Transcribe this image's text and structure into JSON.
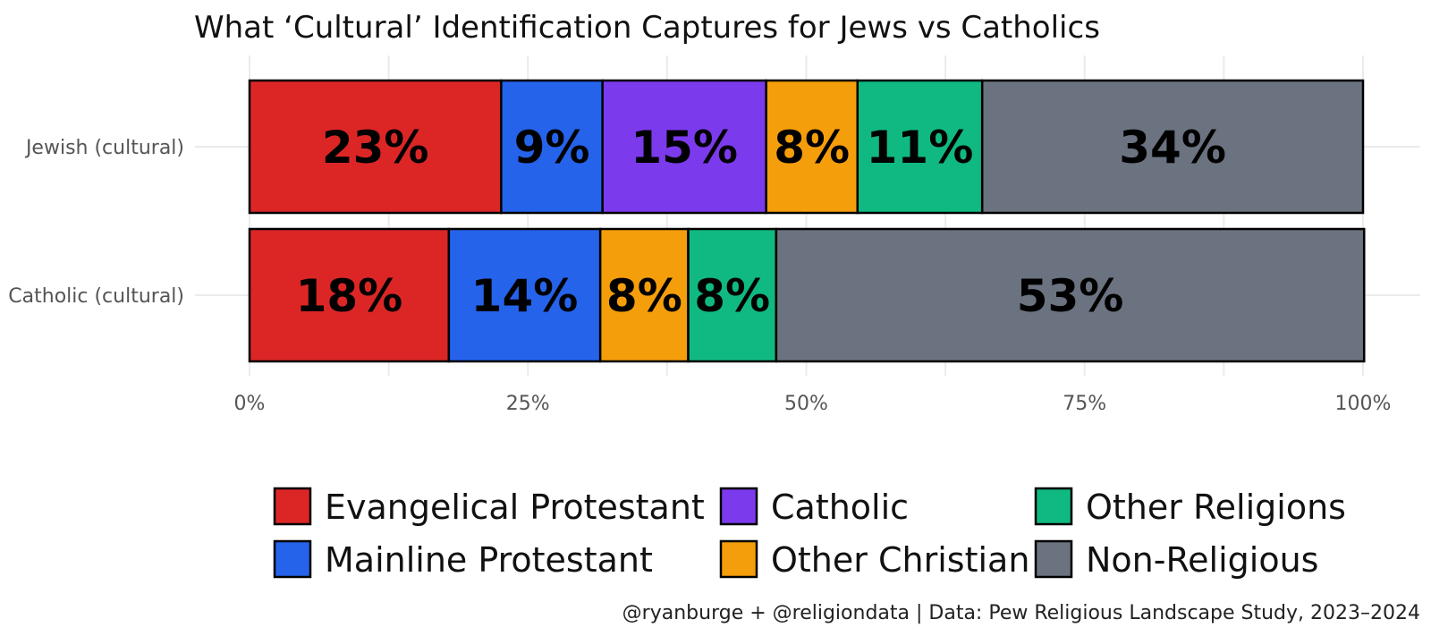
{
  "title": "What ‘Cultural’ Identification Captures for Jews vs Catholics",
  "caption": "@ryanburge + @religiondata | Data: Pew Religious Landscape Study, 2023–2024",
  "chart_data": {
    "type": "bar",
    "orientation": "horizontal",
    "stacked": true,
    "title": "What ‘Cultural’ Identification Captures for Jews vs Catholics",
    "xlabel": "",
    "ylabel": "",
    "xlim": [
      0,
      100
    ],
    "x_ticks": [
      "0%",
      "25%",
      "50%",
      "75%",
      "100%"
    ],
    "x_tick_values": [
      0,
      25,
      50,
      75,
      100
    ],
    "grid": true,
    "legend_position": "bottom",
    "categories": [
      "Jewish (cultural)",
      "Catholic (cultural)"
    ],
    "series": [
      {
        "name": "Evangelical Protestant",
        "color": "#dc2626",
        "values": [
          22.6,
          17.9
        ],
        "labels": [
          "23%",
          "18%"
        ]
      },
      {
        "name": "Mainline Protestant",
        "color": "#2563eb",
        "values": [
          9.1,
          13.6
        ],
        "labels": [
          "9%",
          "14%"
        ]
      },
      {
        "name": "Catholic",
        "color": "#7c3aed",
        "values": [
          14.7,
          0
        ],
        "labels": [
          "15%",
          ""
        ]
      },
      {
        "name": "Other Christian",
        "color": "#f59e0b",
        "values": [
          8.2,
          7.9
        ],
        "labels": [
          "8%",
          "8%"
        ]
      },
      {
        "name": "Other Religions",
        "color": "#10b981",
        "values": [
          11.2,
          7.9
        ],
        "labels": [
          "11%",
          "8%"
        ]
      },
      {
        "name": "Non-Religious",
        "color": "#6b7280",
        "values": [
          34.2,
          52.8
        ],
        "labels": [
          "34%",
          "53%"
        ]
      }
    ]
  }
}
